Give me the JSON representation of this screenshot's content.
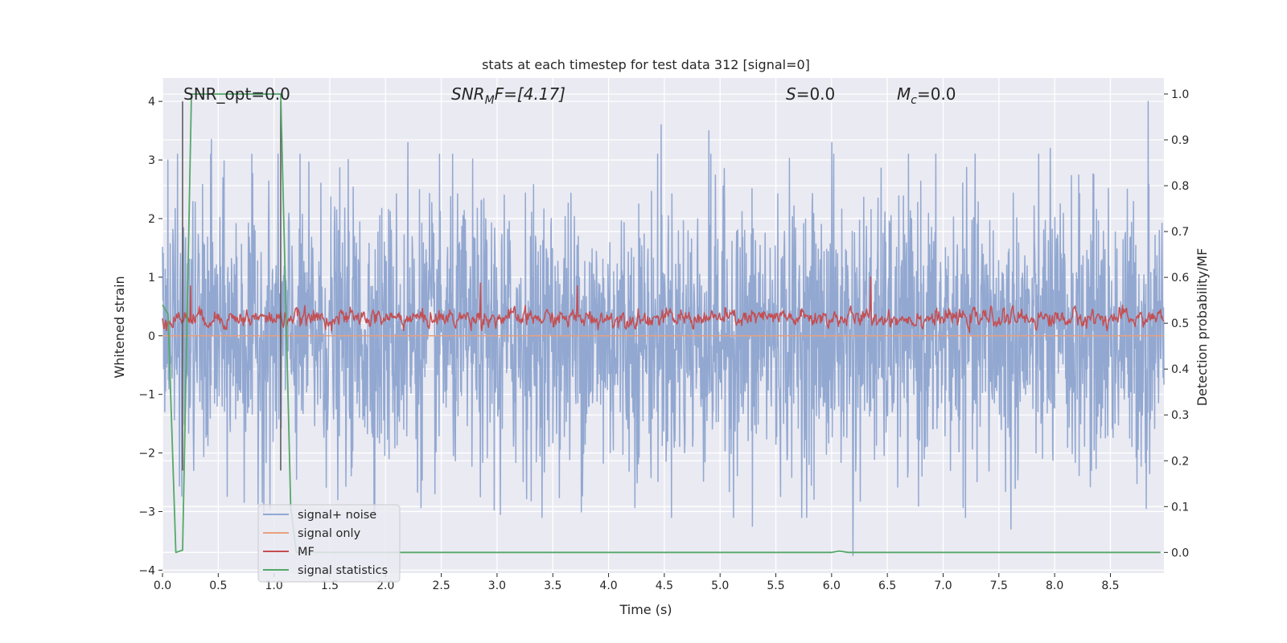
{
  "chart_data": {
    "type": "line",
    "title": "stats at each timestep for test data 312 [signal=0]",
    "xlabel": "Time (s)",
    "ylabel_left": "Whitened strain",
    "ylabel_right": "Detection probability/MF",
    "xlim": [
      0.0,
      8.98
    ],
    "ylim_left": [
      -4.05,
      4.4
    ],
    "ylim_right": [
      -0.045,
      1.035
    ],
    "xticks": [
      "0.0",
      "0.5",
      "1.0",
      "1.5",
      "2.0",
      "2.5",
      "3.0",
      "3.5",
      "4.0",
      "4.5",
      "5.0",
      "5.5",
      "6.0",
      "6.5",
      "7.0",
      "7.5",
      "8.0",
      "8.5"
    ],
    "yticks_left": [
      "4",
      "3",
      "2",
      "1",
      "0",
      "−1",
      "−2",
      "−3",
      "−4"
    ],
    "yticks_right": [
      "1.0",
      "0.9",
      "0.8",
      "0.7",
      "0.6",
      "0.5",
      "0.4",
      "0.3",
      "0.2",
      "0.1",
      "0.0"
    ],
    "grid": true,
    "legend_position": "lower-left",
    "annotations": {
      "snr_opt": "SNR_opt=0.0",
      "snr_mf_prefix": "SNR",
      "snr_mf_sub": "M",
      "snr_mf_rest": "F=[4.17]",
      "s_sym": "S",
      "s_rest": "=0.0",
      "mc_sym": "M",
      "mc_sub": "c",
      "mc_rest": "=0.0"
    },
    "series": [
      {
        "name": "signal+ noise",
        "color": "#92a8d1",
        "axis": "left",
        "duration_s": 8.98,
        "approx_range": [
          -3.8,
          4.0
        ],
        "notable_peaks": [
          [
            0.05,
            3.0
          ],
          [
            0.44,
            3.35
          ],
          [
            2.2,
            3.3
          ],
          [
            4.47,
            3.6
          ],
          [
            4.9,
            3.5
          ],
          [
            6.0,
            3.3
          ],
          [
            7.96,
            3.2
          ],
          [
            8.84,
            4.0
          ]
        ],
        "notable_troughs": [
          [
            3.03,
            -3.05
          ],
          [
            5.29,
            -3.25
          ],
          [
            6.19,
            -3.75
          ],
          [
            7.61,
            -3.3
          ],
          [
            8.82,
            -2.95
          ]
        ]
      },
      {
        "name": "signal only",
        "color": "#e8a07e",
        "axis": "left",
        "constant_value": 0.0
      },
      {
        "name": "MF",
        "color": "#c44e52",
        "axis": "left",
        "duration_s": 8.98,
        "approx_range": [
          0.0,
          1.0
        ],
        "typical_level": 0.3,
        "notable_peaks": [
          [
            0.25,
            0.85
          ],
          [
            2.85,
            0.9
          ],
          [
            3.72,
            0.85
          ],
          [
            6.35,
            1.0
          ]
        ]
      },
      {
        "name": "signal statistics",
        "color": "#55a868",
        "axis": "right",
        "x": [
          0.0,
          0.05,
          0.12,
          0.18,
          0.26,
          1.06,
          1.15,
          1.2,
          6.0,
          6.07,
          6.15,
          8.95
        ],
        "y": [
          0.54,
          0.52,
          0.0,
          0.005,
          1.0,
          1.0,
          0.1,
          0.0,
          0.0,
          0.003,
          0.0,
          0.0
        ]
      }
    ],
    "vertical_lines": [
      {
        "x": 0.18,
        "y_from": -2.3,
        "y_to": 4.0,
        "color": "#555555"
      },
      {
        "x": 1.06,
        "y_from": -2.3,
        "y_to": 4.0,
        "color": "#555555"
      }
    ]
  }
}
